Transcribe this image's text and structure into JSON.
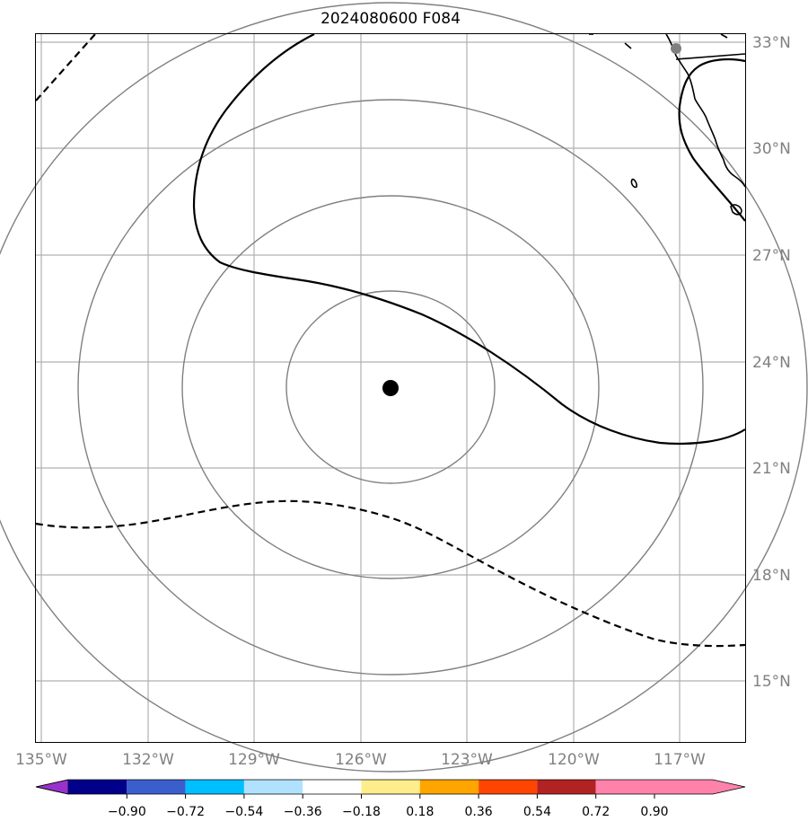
{
  "title": "2024080600 F084",
  "storm_center": {
    "lon": -124.8,
    "lat": 23.2,
    "marker": "black-dot"
  },
  "range_ring_count": 4,
  "lon_ticks": [
    "135°W",
    "132°W",
    "129°W",
    "126°W",
    "123°W",
    "120°W",
    "117°W"
  ],
  "lat_ticks": [
    "33°N",
    "30°N",
    "27°N",
    "24°N",
    "21°N",
    "18°N",
    "15°N"
  ],
  "colorbar": {
    "tick_labels": [
      "−0.90",
      "−0.72",
      "−0.54",
      "−0.36",
      "−0.18",
      "0.18",
      "0.36",
      "0.54",
      "0.72",
      "0.90"
    ],
    "colors": [
      "#9932cc",
      "#00008b",
      "#3a5fcd",
      "#00bfff",
      "#b0e2ff",
      "#ffffff",
      "#ffec8b",
      "#ffa500",
      "#ff4500",
      "#b22222",
      "#ff82ab"
    ],
    "extend": "both"
  },
  "contours": {
    "solid": "positive",
    "dashed": "negative"
  },
  "colors": {
    "grid": "#b0b0b0",
    "rings": "#808080",
    "contour": "#000000",
    "tick_text": "#808080"
  }
}
